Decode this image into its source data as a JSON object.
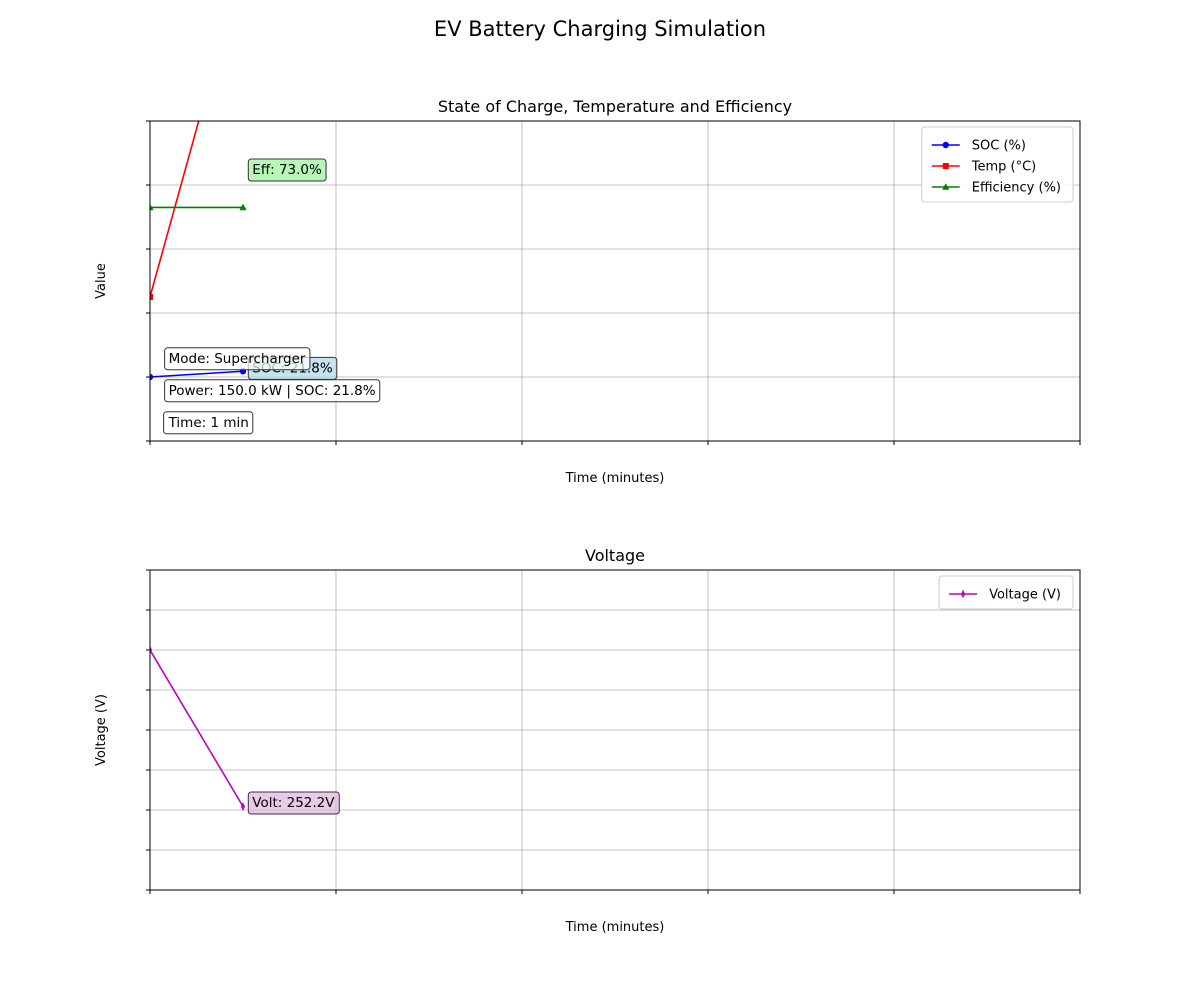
{
  "figure": {
    "title": "EV Battery Charging Simulation"
  },
  "chart_data": [
    {
      "type": "line",
      "title": "State of Charge, Temperature and Efficiency",
      "xlabel": "Time (minutes)",
      "ylabel": "Value",
      "xlim": [
        0,
        10
      ],
      "ylim": [
        0,
        100
      ],
      "xticks": [
        0,
        2,
        4,
        6,
        8,
        10
      ],
      "yticks": [
        0,
        20,
        40,
        60,
        80,
        100
      ],
      "grid": true,
      "legend_position": "top-right",
      "series": [
        {
          "name": "SOC (%)",
          "color": "#0000ff",
          "marker": "circle",
          "x": [
            0,
            1
          ],
          "y": [
            20,
            21.8
          ]
        },
        {
          "name": "Temp (°C)",
          "color": "#ff0000",
          "marker": "square",
          "x": [
            0,
            1
          ],
          "y": [
            45,
            150
          ]
        },
        {
          "name": "Efficiency (%)",
          "color": "#008000",
          "marker": "triangle",
          "x": [
            0,
            1
          ],
          "y": [
            73,
            73
          ]
        }
      ],
      "annotations": [
        {
          "text": "Eff: 73.0%",
          "x": 1.1,
          "y": 85,
          "bg": "#98f598"
        },
        {
          "text": "SOC: 21.8%",
          "x": 1.1,
          "y": 23,
          "bg": "#add8e6"
        },
        {
          "text": "Mode: Supercharger",
          "x": 0.2,
          "y": 26,
          "bg": "#ffffff"
        },
        {
          "text": "Power: 150.0 kW | SOC: 21.8%",
          "x": 0.2,
          "y": 16,
          "bg": "#ffffff"
        },
        {
          "text": "Time: 1 min",
          "x": 0.2,
          "y": 6,
          "bg": "#ffffff"
        }
      ]
    },
    {
      "type": "line",
      "title": "Voltage",
      "xlabel": "Time (minutes)",
      "ylabel": "Voltage (V)",
      "xlim": [
        0,
        10
      ],
      "ylim": [
        200,
        400
      ],
      "xticks": [
        0,
        2,
        4,
        6,
        8,
        10
      ],
      "yticks": [
        200,
        225,
        250,
        275,
        300,
        325,
        350,
        375,
        400
      ],
      "grid": true,
      "legend_position": "top-right",
      "series": [
        {
          "name": "Voltage (V)",
          "color": "#bf00bf",
          "marker": "thin-diamond",
          "x": [
            0,
            1
          ],
          "y": [
            350,
            252.2
          ]
        }
      ],
      "annotations": [
        {
          "text": "Volt: 252.2V",
          "x": 1.1,
          "y": 255,
          "bg": "#e0b4e0"
        }
      ]
    }
  ]
}
